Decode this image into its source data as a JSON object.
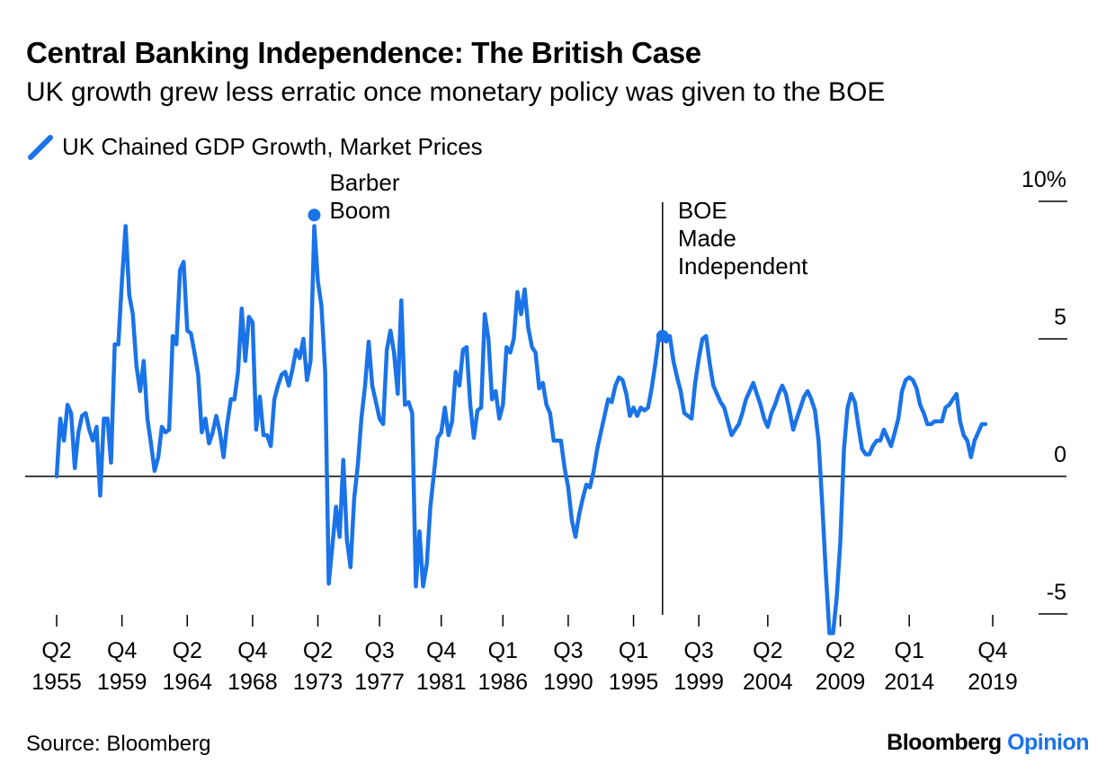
{
  "header": {
    "title": "Central Banking Independence: The British Case",
    "subtitle": "UK growth grew less erratic once monetary policy was given to the BOE"
  },
  "legend": {
    "label": "UK Chained GDP Growth, Market Prices",
    "color": "#1a73e8"
  },
  "footer": {
    "source": "Source: Bloomberg",
    "brand_main": "Bloomberg",
    "brand_accent": "Opinion"
  },
  "colors": {
    "line": "#1a73e8",
    "axis": "#000000"
  },
  "chart_data": {
    "type": "line",
    "title": "Central Banking Independence: The British Case",
    "subtitle": "UK growth grew less erratic once monetary policy was given to the BOE",
    "series": [
      {
        "name": "UK Chained GDP Growth, Market Prices",
        "points": [
          [
            1955.375,
            0.0
          ],
          [
            1955.625,
            2.1
          ],
          [
            1955.875,
            1.3
          ],
          [
            1956.125,
            2.6
          ],
          [
            1956.375,
            2.3
          ],
          [
            1956.625,
            0.3
          ],
          [
            1956.875,
            1.6
          ],
          [
            1957.125,
            2.2
          ],
          [
            1957.375,
            2.3
          ],
          [
            1957.625,
            1.7
          ],
          [
            1957.875,
            1.3
          ],
          [
            1958.125,
            1.8
          ],
          [
            1958.375,
            -0.7
          ],
          [
            1958.625,
            2.1
          ],
          [
            1958.875,
            2.1
          ],
          [
            1959.125,
            0.5
          ],
          [
            1959.375,
            4.8
          ],
          [
            1959.625,
            4.8
          ],
          [
            1959.875,
            7.1
          ],
          [
            1960.125,
            9.1
          ],
          [
            1960.375,
            6.6
          ],
          [
            1960.625,
            5.9
          ],
          [
            1960.875,
            4.0
          ],
          [
            1961.125,
            3.1
          ],
          [
            1961.375,
            4.2
          ],
          [
            1961.625,
            2.1
          ],
          [
            1961.875,
            1.2
          ],
          [
            1962.125,
            0.2
          ],
          [
            1962.375,
            0.7
          ],
          [
            1962.625,
            1.8
          ],
          [
            1962.875,
            1.6
          ],
          [
            1963.125,
            1.7
          ],
          [
            1963.375,
            5.1
          ],
          [
            1963.625,
            4.8
          ],
          [
            1963.875,
            7.5
          ],
          [
            1964.125,
            7.8
          ],
          [
            1964.375,
            5.3
          ],
          [
            1964.625,
            5.2
          ],
          [
            1964.875,
            4.5
          ],
          [
            1965.125,
            3.7
          ],
          [
            1965.375,
            1.6
          ],
          [
            1965.625,
            2.1
          ],
          [
            1965.875,
            1.2
          ],
          [
            1966.125,
            1.6
          ],
          [
            1966.375,
            2.2
          ],
          [
            1966.625,
            1.6
          ],
          [
            1966.875,
            0.7
          ],
          [
            1967.125,
            1.9
          ],
          [
            1967.375,
            2.8
          ],
          [
            1967.625,
            2.8
          ],
          [
            1967.875,
            3.8
          ],
          [
            1968.125,
            6.1
          ],
          [
            1968.375,
            4.2
          ],
          [
            1968.625,
            5.8
          ],
          [
            1968.875,
            5.6
          ],
          [
            1969.125,
            1.7
          ],
          [
            1969.375,
            2.9
          ],
          [
            1969.625,
            1.5
          ],
          [
            1969.875,
            1.5
          ],
          [
            1970.125,
            1.1
          ],
          [
            1970.375,
            2.8
          ],
          [
            1970.625,
            3.3
          ],
          [
            1970.875,
            3.7
          ],
          [
            1971.125,
            3.8
          ],
          [
            1971.375,
            3.3
          ],
          [
            1971.625,
            3.9
          ],
          [
            1971.875,
            4.6
          ],
          [
            1972.125,
            4.3
          ],
          [
            1972.375,
            5.0
          ],
          [
            1972.625,
            3.5
          ],
          [
            1972.875,
            4.2
          ],
          [
            1973.125,
            9.1
          ],
          [
            1973.375,
            7.1
          ],
          [
            1973.625,
            6.2
          ],
          [
            1973.875,
            3.8
          ],
          [
            1974.125,
            -3.9
          ],
          [
            1974.375,
            -2.5
          ],
          [
            1974.625,
            -1.1
          ],
          [
            1974.875,
            -2.2
          ],
          [
            1975.125,
            0.6
          ],
          [
            1975.375,
            -2.3
          ],
          [
            1975.625,
            -3.3
          ],
          [
            1975.875,
            -0.8
          ],
          [
            1976.125,
            0.4
          ],
          [
            1976.375,
            2.1
          ],
          [
            1976.625,
            3.3
          ],
          [
            1976.875,
            4.9
          ],
          [
            1977.125,
            3.3
          ],
          [
            1977.375,
            2.7
          ],
          [
            1977.625,
            2.1
          ],
          [
            1977.875,
            1.9
          ],
          [
            1978.125,
            4.6
          ],
          [
            1978.375,
            5.3
          ],
          [
            1978.625,
            4.5
          ],
          [
            1978.875,
            3.0
          ],
          [
            1979.125,
            6.4
          ],
          [
            1979.375,
            2.6
          ],
          [
            1979.625,
            2.7
          ],
          [
            1979.875,
            2.3
          ],
          [
            1980.125,
            -4.0
          ],
          [
            1980.375,
            -2.0
          ],
          [
            1980.625,
            -4.0
          ],
          [
            1980.875,
            -3.2
          ],
          [
            1981.125,
            -1.1
          ],
          [
            1981.375,
            0.1
          ],
          [
            1981.625,
            1.4
          ],
          [
            1981.875,
            1.6
          ],
          [
            1982.125,
            2.5
          ],
          [
            1982.375,
            1.5
          ],
          [
            1982.625,
            2.0
          ],
          [
            1982.875,
            3.8
          ],
          [
            1983.125,
            3.3
          ],
          [
            1983.375,
            4.6
          ],
          [
            1983.625,
            4.7
          ],
          [
            1983.875,
            2.6
          ],
          [
            1984.125,
            1.4
          ],
          [
            1984.375,
            2.4
          ],
          [
            1984.625,
            2.5
          ],
          [
            1984.875,
            5.9
          ],
          [
            1985.125,
            5.0
          ],
          [
            1985.375,
            2.8
          ],
          [
            1985.625,
            3.1
          ],
          [
            1985.875,
            2.1
          ],
          [
            1986.125,
            2.6
          ],
          [
            1986.375,
            4.7
          ],
          [
            1986.625,
            4.5
          ],
          [
            1986.875,
            5.0
          ],
          [
            1987.125,
            6.7
          ],
          [
            1987.375,
            5.9
          ],
          [
            1987.625,
            6.8
          ],
          [
            1987.875,
            5.4
          ],
          [
            1988.125,
            4.7
          ],
          [
            1988.375,
            4.5
          ],
          [
            1988.625,
            3.2
          ],
          [
            1988.875,
            3.4
          ],
          [
            1989.125,
            2.6
          ],
          [
            1989.375,
            2.3
          ],
          [
            1989.625,
            1.3
          ],
          [
            1989.875,
            1.3
          ],
          [
            1990.125,
            1.3
          ],
          [
            1990.375,
            0.3
          ],
          [
            1990.625,
            -0.4
          ],
          [
            1990.875,
            -1.6
          ],
          [
            1991.125,
            -2.2
          ],
          [
            1991.375,
            -1.4
          ],
          [
            1991.625,
            -0.8
          ],
          [
            1991.875,
            -0.3
          ],
          [
            1992.125,
            -0.4
          ],
          [
            1992.375,
            0.2
          ],
          [
            1992.625,
            1.0
          ],
          [
            1992.875,
            1.6
          ],
          [
            1993.125,
            2.2
          ],
          [
            1993.375,
            2.8
          ],
          [
            1993.625,
            2.7
          ],
          [
            1993.875,
            3.3
          ],
          [
            1994.125,
            3.6
          ],
          [
            1994.375,
            3.5
          ],
          [
            1994.625,
            3.0
          ],
          [
            1994.875,
            2.2
          ],
          [
            1995.125,
            2.5
          ],
          [
            1995.375,
            2.2
          ],
          [
            1995.625,
            2.5
          ],
          [
            1995.875,
            2.4
          ],
          [
            1996.125,
            2.5
          ],
          [
            1996.375,
            3.2
          ],
          [
            1996.625,
            4.1
          ],
          [
            1996.875,
            5.1
          ],
          [
            1997.125,
            5.1
          ],
          [
            1997.375,
            4.9
          ],
          [
            1997.625,
            5.1
          ],
          [
            1997.875,
            4.2
          ],
          [
            1998.125,
            3.6
          ],
          [
            1998.375,
            3.1
          ],
          [
            1998.625,
            2.3
          ],
          [
            1998.875,
            2.2
          ],
          [
            1999.125,
            2.1
          ],
          [
            1999.375,
            3.4
          ],
          [
            1999.625,
            4.3
          ],
          [
            1999.875,
            5.0
          ],
          [
            2000.125,
            5.1
          ],
          [
            2000.375,
            4.1
          ],
          [
            2000.625,
            3.3
          ],
          [
            2000.875,
            3.0
          ],
          [
            2001.125,
            2.7
          ],
          [
            2001.375,
            2.5
          ],
          [
            2001.625,
            2.0
          ],
          [
            2001.875,
            1.5
          ],
          [
            2002.125,
            1.7
          ],
          [
            2002.375,
            1.9
          ],
          [
            2002.625,
            2.3
          ],
          [
            2002.875,
            2.8
          ],
          [
            2003.125,
            3.1
          ],
          [
            2003.375,
            3.4
          ],
          [
            2003.625,
            3.0
          ],
          [
            2003.875,
            2.6
          ],
          [
            2004.125,
            2.1
          ],
          [
            2004.375,
            1.8
          ],
          [
            2004.625,
            2.3
          ],
          [
            2004.875,
            2.6
          ],
          [
            2005.125,
            3.0
          ],
          [
            2005.375,
            3.3
          ],
          [
            2005.625,
            3.0
          ],
          [
            2005.875,
            2.4
          ],
          [
            2006.125,
            1.7
          ],
          [
            2006.375,
            2.1
          ],
          [
            2006.625,
            2.5
          ],
          [
            2006.875,
            2.9
          ],
          [
            2007.125,
            3.1
          ],
          [
            2007.375,
            2.8
          ],
          [
            2007.625,
            2.4
          ],
          [
            2007.875,
            1.3
          ],
          [
            2008.125,
            -1.0
          ],
          [
            2008.375,
            -3.5
          ],
          [
            2008.625,
            -5.7
          ],
          [
            2008.875,
            -5.7
          ],
          [
            2009.125,
            -4.4
          ],
          [
            2009.375,
            -2.4
          ],
          [
            2009.625,
            1.0
          ],
          [
            2009.875,
            2.5
          ],
          [
            2010.125,
            3.0
          ],
          [
            2010.375,
            2.7
          ],
          [
            2010.625,
            1.8
          ],
          [
            2010.875,
            1.0
          ],
          [
            2011.125,
            0.8
          ],
          [
            2011.375,
            0.8
          ],
          [
            2011.625,
            1.1
          ],
          [
            2011.875,
            1.3
          ],
          [
            2012.125,
            1.3
          ],
          [
            2012.375,
            1.7
          ],
          [
            2012.625,
            1.4
          ],
          [
            2012.875,
            1.1
          ],
          [
            2013.125,
            1.6
          ],
          [
            2013.375,
            2.1
          ],
          [
            2013.625,
            3.1
          ],
          [
            2013.875,
            3.5
          ],
          [
            2014.125,
            3.6
          ],
          [
            2014.375,
            3.5
          ],
          [
            2014.625,
            3.2
          ],
          [
            2014.875,
            2.6
          ],
          [
            2015.125,
            2.3
          ],
          [
            2015.375,
            1.9
          ],
          [
            2015.625,
            1.9
          ],
          [
            2015.875,
            2.0
          ],
          [
            2016.125,
            2.0
          ],
          [
            2016.375,
            2.0
          ],
          [
            2016.625,
            2.5
          ],
          [
            2016.875,
            2.6
          ],
          [
            2017.125,
            2.8
          ],
          [
            2017.375,
            3.0
          ],
          [
            2017.625,
            2.0
          ],
          [
            2017.875,
            1.5
          ],
          [
            2018.125,
            1.3
          ],
          [
            2018.375,
            0.7
          ],
          [
            2018.625,
            1.3
          ],
          [
            2018.875,
            1.6
          ],
          [
            2019.125,
            1.9
          ],
          [
            2019.375,
            1.9
          ]
        ]
      }
    ],
    "x_axis": {
      "range": [
        1954.5,
        2021.5
      ],
      "ticks": [
        {
          "x": 1955.375,
          "quarter": "Q2",
          "year": "1955"
        },
        {
          "x": 1959.875,
          "quarter": "Q4",
          "year": "1959"
        },
        {
          "x": 1964.375,
          "quarter": "Q2",
          "year": "1964"
        },
        {
          "x": 1968.875,
          "quarter": "Q4",
          "year": "1968"
        },
        {
          "x": 1973.375,
          "quarter": "Q2",
          "year": "1973"
        },
        {
          "x": 1977.625,
          "quarter": "Q3",
          "year": "1977"
        },
        {
          "x": 1981.875,
          "quarter": "Q4",
          "year": "1981"
        },
        {
          "x": 1986.125,
          "quarter": "Q1",
          "year": "1986"
        },
        {
          "x": 1990.625,
          "quarter": "Q3",
          "year": "1990"
        },
        {
          "x": 1995.125,
          "quarter": "Q1",
          "year": "1995"
        },
        {
          "x": 1999.625,
          "quarter": "Q3",
          "year": "1999"
        },
        {
          "x": 2004.375,
          "quarter": "Q2",
          "year": "2004"
        },
        {
          "x": 2009.375,
          "quarter": "Q2",
          "year": "2009"
        },
        {
          "x": 2014.125,
          "quarter": "Q1",
          "year": "2014"
        },
        {
          "x": 2019.875,
          "quarter": "Q4",
          "year": "2019"
        }
      ]
    },
    "y_axis": {
      "range": [
        -5.5,
        10.5
      ],
      "ticks": [
        {
          "value": 10,
          "label": "10%"
        },
        {
          "value": 5,
          "label": "5"
        },
        {
          "value": 0,
          "label": "0"
        },
        {
          "value": -5,
          "label": "-5"
        }
      ]
    },
    "annotations": [
      {
        "id": "barber",
        "x": 1973.125,
        "y": 9.5,
        "lines": [
          "Barber",
          "Boom"
        ]
      },
      {
        "id": "boe",
        "x": 1997.125,
        "y": 5.1,
        "lines": [
          "BOE",
          "Made",
          "Independent"
        ]
      }
    ],
    "grid": false,
    "legend_position": "top-left"
  }
}
